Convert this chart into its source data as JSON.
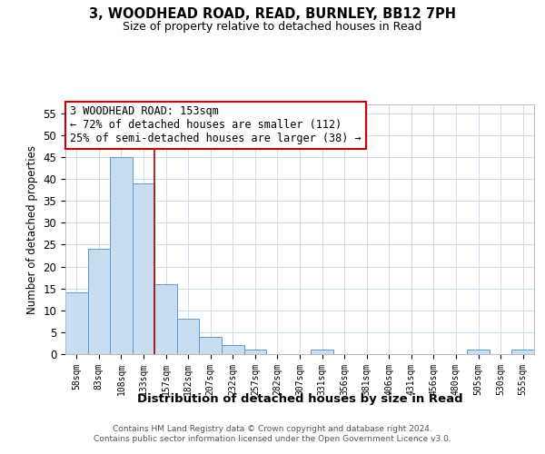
{
  "title": "3, WOODHEAD ROAD, READ, BURNLEY, BB12 7PH",
  "subtitle": "Size of property relative to detached houses in Read",
  "xlabel": "Distribution of detached houses by size in Read",
  "ylabel": "Number of detached properties",
  "bar_color": "#c8ddf0",
  "bar_edge_color": "#5b9bd5",
  "vline_color": "#aa0000",
  "categories": [
    "58sqm",
    "83sqm",
    "108sqm",
    "133sqm",
    "157sqm",
    "182sqm",
    "207sqm",
    "232sqm",
    "257sqm",
    "282sqm",
    "307sqm",
    "331sqm",
    "356sqm",
    "381sqm",
    "406sqm",
    "431sqm",
    "456sqm",
    "480sqm",
    "505sqm",
    "530sqm",
    "555sqm"
  ],
  "values": [
    14,
    24,
    45,
    39,
    16,
    8,
    4,
    2,
    1,
    0,
    0,
    1,
    0,
    0,
    0,
    0,
    0,
    0,
    1,
    0,
    1
  ],
  "ylim": [
    0,
    57
  ],
  "yticks": [
    0,
    5,
    10,
    15,
    20,
    25,
    30,
    35,
    40,
    45,
    50,
    55
  ],
  "annotation_title": "3 WOODHEAD ROAD: 153sqm",
  "annotation_line1": "← 72% of detached houses are smaller (112)",
  "annotation_line2": "25% of semi-detached houses are larger (38) →",
  "footer_line1": "Contains HM Land Registry data © Crown copyright and database right 2024.",
  "footer_line2": "Contains public sector information licensed under the Open Government Licence v3.0.",
  "background_color": "#ffffff",
  "grid_color": "#c8ddf0",
  "vline_index": 3.5
}
